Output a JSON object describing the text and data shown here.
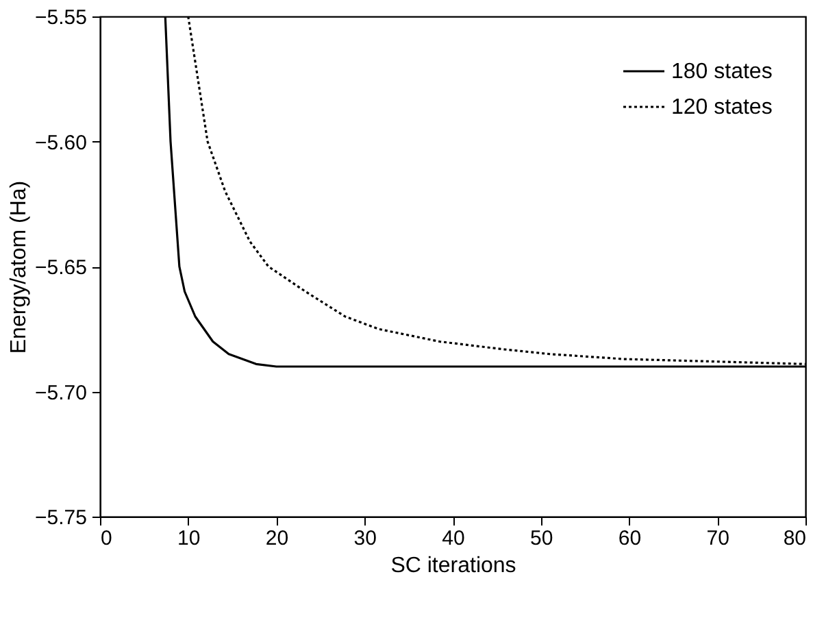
{
  "chart_data": {
    "type": "line",
    "xlabel": "SC iterations",
    "ylabel": "Energy/atom (Ha)",
    "xlim": [
      0,
      80
    ],
    "xticks": [
      0,
      10,
      20,
      30,
      40,
      50,
      60,
      70,
      80
    ],
    "ylim": [
      -5.75,
      -5.55
    ],
    "yticks": [
      {
        "value": -5.75,
        "label": "−5.75"
      },
      {
        "value": -5.7,
        "label": "−5.70"
      },
      {
        "value": -5.65,
        "label": "−5.65"
      },
      {
        "value": -5.6,
        "label": "−5.60"
      },
      {
        "value": -5.55,
        "label": "−5.55"
      }
    ],
    "grid": false,
    "legend": "top right",
    "marker": "none",
    "series": [
      {
        "name": "180 states",
        "color": "#000000",
        "line_style": "solid",
        "x": [
          7.4,
          8.0,
          9.0,
          9.6,
          10.8,
          12.8,
          14.6,
          17.7,
          20,
          30,
          40,
          50,
          60,
          70,
          80
        ],
        "values": [
          -5.55,
          -5.6,
          -5.65,
          -5.66,
          -5.67,
          -5.68,
          -5.685,
          -5.689,
          -5.69,
          -5.69,
          -5.69,
          -5.69,
          -5.69,
          -5.69,
          -5.69
        ]
      },
      {
        "name": "120 states",
        "color": "#000000",
        "line_style": "dotted",
        "x": [
          10.0,
          12.2,
          14.2,
          17.0,
          19.1,
          23.3,
          27.8,
          31.6,
          38.5,
          45.5,
          51,
          59.4,
          69.8,
          80
        ],
        "values": [
          -5.55,
          -5.6,
          -5.62,
          -5.64,
          -5.65,
          -5.66,
          -5.67,
          -5.675,
          -5.68,
          -5.683,
          -5.685,
          -5.687,
          -5.688,
          -5.689
        ]
      }
    ]
  }
}
